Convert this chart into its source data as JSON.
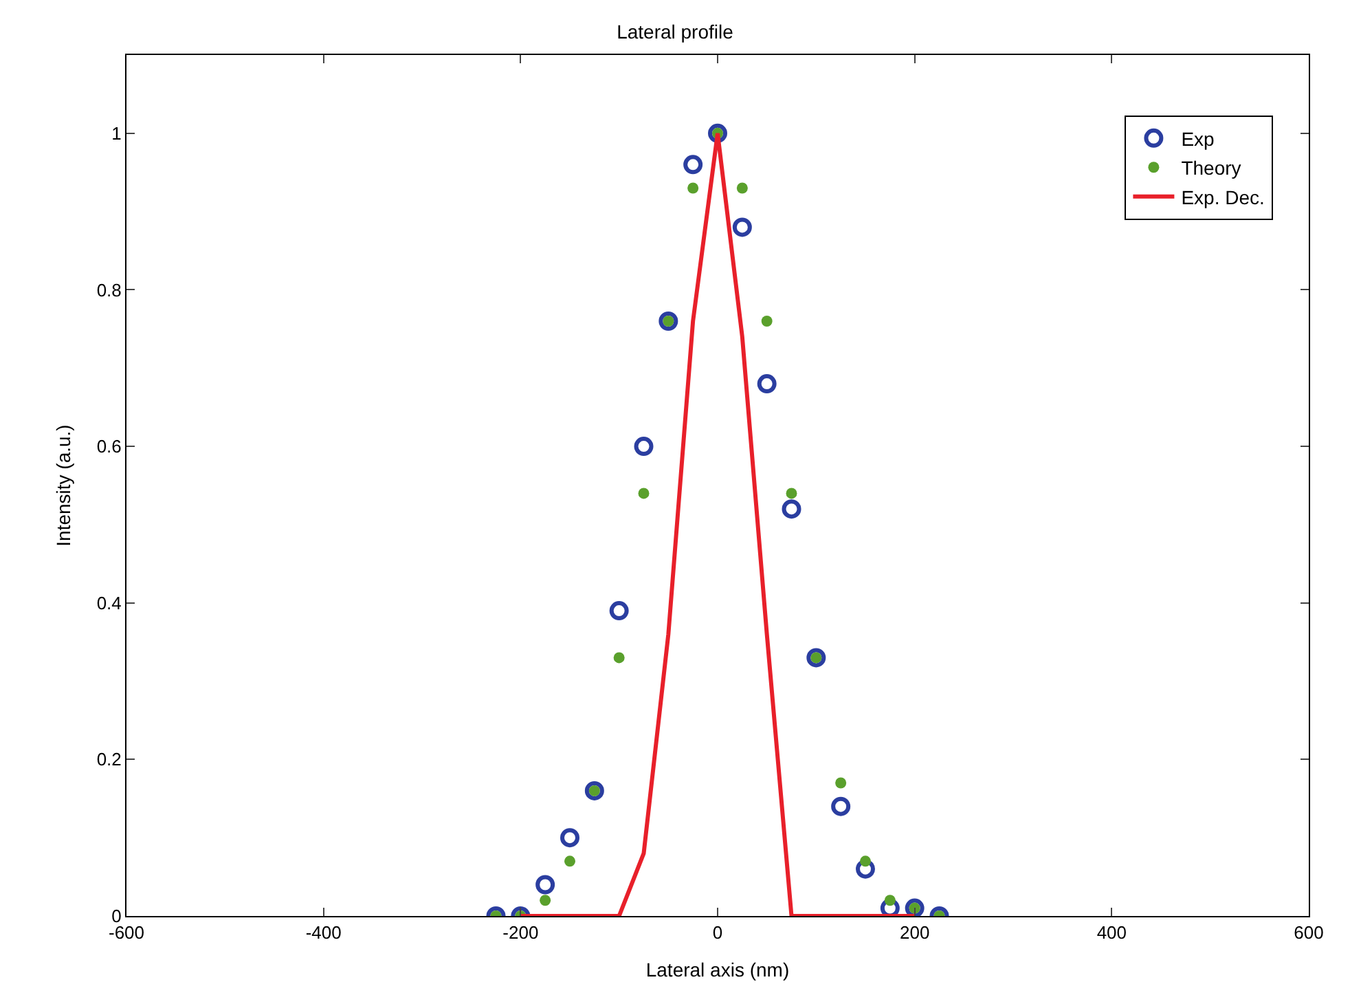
{
  "chart_data": {
    "type": "scatter",
    "title": "Lateral profile",
    "xlabel": "Lateral axis (nm)",
    "ylabel": "Intensity (a.u.)",
    "xlim": [
      -600,
      600
    ],
    "xticks": [
      -600,
      -400,
      -200,
      0,
      200,
      400,
      600
    ],
    "ylim": [
      0,
      1.1
    ],
    "yticks": [
      0,
      0.2,
      0.4,
      0.6,
      0.8,
      1
    ],
    "legend": "top right",
    "series": [
      {
        "name": "Exp",
        "marker": "circle",
        "color": "#2b3ea0",
        "x": [
          -225,
          -200,
          -175,
          -150,
          -125,
          -100,
          -75,
          -50,
          -25,
          0,
          25,
          50,
          75,
          100,
          125,
          150,
          175,
          200,
          225
        ],
        "values": [
          0,
          0,
          0.04,
          0.1,
          0.16,
          0.39,
          0.6,
          0.76,
          0.96,
          1.0,
          0.88,
          0.68,
          0.52,
          0.33,
          0.14,
          0.06,
          0.01,
          0.01,
          0
        ]
      },
      {
        "name": "Theory",
        "marker": "circle",
        "color": "#5aa02c",
        "x": [
          -225,
          -200,
          -175,
          -150,
          -125,
          -100,
          -75,
          -50,
          -25,
          0,
          25,
          50,
          75,
          100,
          125,
          150,
          175,
          200,
          225
        ],
        "values": [
          0,
          0,
          0.02,
          0.07,
          0.16,
          0.33,
          0.54,
          0.76,
          0.93,
          1.0,
          0.93,
          0.76,
          0.54,
          0.33,
          0.17,
          0.07,
          0.02,
          0.01,
          0
        ]
      },
      {
        "name": "Exp. Dec.",
        "type": "line",
        "marker": "none",
        "color": "#e8202a",
        "x": [
          -200,
          -175,
          -150,
          -125,
          -100,
          -75,
          -50,
          -25,
          0,
          25,
          50,
          75,
          100,
          125,
          150,
          175,
          200
        ],
        "values": [
          0,
          0,
          0,
          0,
          0,
          0.08,
          0.36,
          0.76,
          1.0,
          0.74,
          0.36,
          0,
          0,
          0,
          0,
          0,
          0
        ]
      }
    ]
  }
}
